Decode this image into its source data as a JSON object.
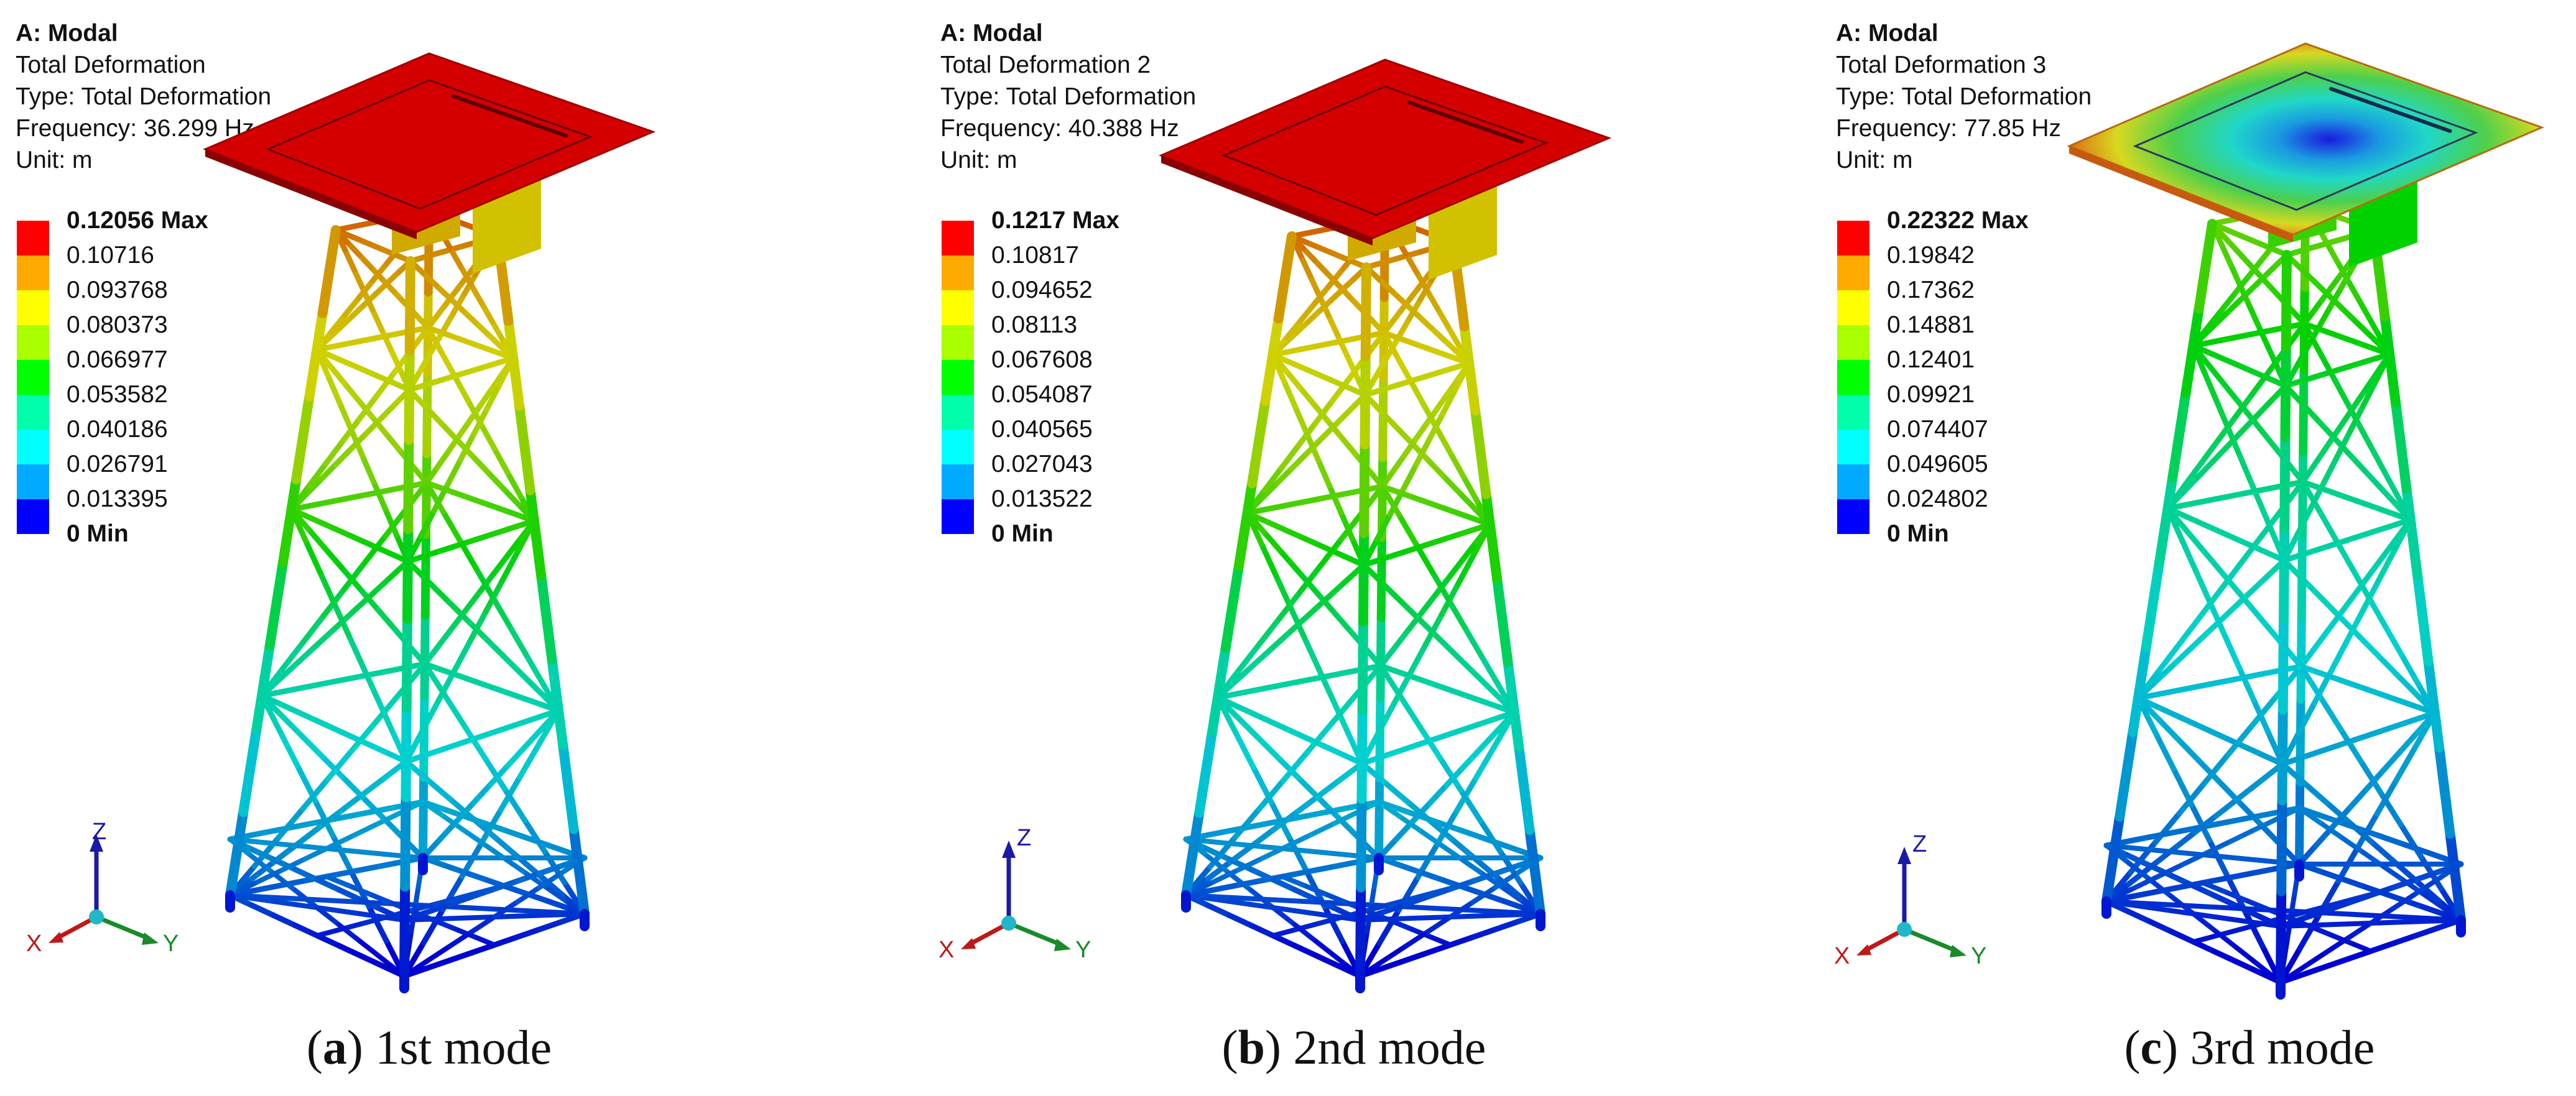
{
  "palette": [
    "#ff0000",
    "#ffaa00",
    "#ffff00",
    "#aaff00",
    "#00ff00",
    "#00ffaa",
    "#00ffff",
    "#00aaff",
    "#0000ff"
  ],
  "triad": {
    "z": "Z",
    "x": "X",
    "y": "Y"
  },
  "panels": [
    {
      "analysis": "A: Modal",
      "result": "Total Deformation",
      "type": "Type: Total Deformation",
      "frequency": "Frequency: 36.299 Hz",
      "unit": "Unit: m",
      "legend": [
        "0.12056 Max",
        "0.10716",
        "0.093768",
        "0.080373",
        "0.066977",
        "0.053582",
        "0.040186",
        "0.026791",
        "0.013395",
        "0 Min"
      ],
      "caption_letter": "a",
      "caption_text": "1st mode"
    },
    {
      "analysis": "A: Modal",
      "result": "Total Deformation 2",
      "type": "Type: Total Deformation",
      "frequency": "Frequency: 40.388 Hz",
      "unit": "Unit: m",
      "legend": [
        "0.1217 Max",
        "0.10817",
        "0.094652",
        "0.08113",
        "0.067608",
        "0.054087",
        "0.040565",
        "0.027043",
        "0.013522",
        "0 Min"
      ],
      "caption_letter": "b",
      "caption_text": "2nd mode"
    },
    {
      "analysis": "A: Modal",
      "result": "Total Deformation 3",
      "type": "Type: Total Deformation",
      "frequency": "Frequency: 77.85 Hz",
      "unit": "Unit: m",
      "legend": [
        "0.22322 Max",
        "0.19842",
        "0.17362",
        "0.14881",
        "0.12401",
        "0.09921",
        "0.074407",
        "0.049605",
        "0.024802",
        "0 Min"
      ],
      "caption_letter": "c",
      "caption_text": "3rd mode"
    }
  ]
}
